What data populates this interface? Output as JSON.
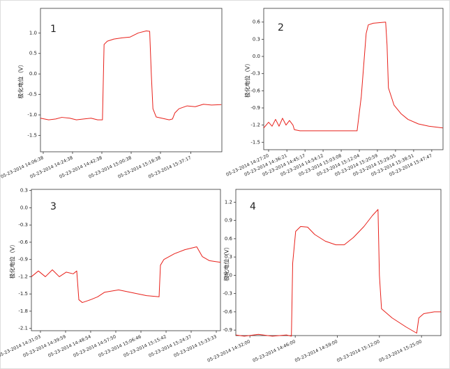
{
  "chart_data": [
    {
      "type": "line",
      "label": "1",
      "ylabel": "极化电位（V）",
      "x": [
        "2014-05-23T14:04:56",
        "2014-05-23T14:10:00",
        "2014-05-23T14:14:20",
        "2014-05-23T14:18:00",
        "2014-05-23T14:22:56",
        "2014-05-23T14:27:00",
        "2014-05-23T14:31:32",
        "2014-05-23T14:36:00",
        "2014-05-23T14:40:02",
        "2014-05-23T14:43:00",
        "2014-05-23T14:44:00",
        "2014-05-23T14:46:00",
        "2014-05-23T14:50:00",
        "2014-05-23T14:55:00",
        "2014-05-23T15:00:00",
        "2014-05-23T15:05:00",
        "2014-05-23T15:10:00",
        "2014-05-23T15:12:00",
        "2014-05-23T15:13:00",
        "2014-05-23T15:14:00",
        "2014-05-23T15:16:00",
        "2014-05-23T15:24:00",
        "2014-05-23T15:26:00",
        "2014-05-23T15:27:30",
        "2014-05-23T15:30:00",
        "2014-05-23T15:35:00",
        "2014-05-23T15:40:00",
        "2014-05-23T15:45:00",
        "2014-05-23T15:50:00",
        "2014-05-23T15:56:00"
      ],
      "series": [
        {
          "color": "#e8201a",
          "values": [
            -1.08,
            -1.12,
            -1.1,
            -1.06,
            -1.08,
            -1.12,
            -1.1,
            -1.08,
            -1.12,
            -1.12,
            0.72,
            0.8,
            0.85,
            0.88,
            0.9,
            1.0,
            1.05,
            1.04,
            0.0,
            -0.85,
            -1.05,
            -1.12,
            -1.1,
            -0.95,
            -0.85,
            -0.78,
            -0.8,
            -0.74,
            -0.76,
            -0.75
          ]
        }
      ],
      "xlim": [
        "2014-05-23T14:04:56",
        "2014-05-23T15:56:20"
      ],
      "ylim": [
        -1.9,
        1.6
      ],
      "xticks": [
        {
          "value": "2014-05-23T14:06:38",
          "label": "05-23-2014 14:06:38"
        },
        {
          "value": "2014-05-23T14:24:38",
          "label": "05-23-2014 14:24:38"
        },
        {
          "value": "2014-05-23T14:42:38",
          "label": "05-23-2014 14:42:38"
        },
        {
          "value": "2014-05-23T15:00:38",
          "label": "05-23-2014 15:00:38"
        },
        {
          "value": "2014-05-23T15:18:38",
          "label": "05-23-2014 15:18:38"
        },
        {
          "value": "2014-05-23T15:37:17",
          "label": "05-23-2014 15:37:17"
        }
      ],
      "yticks": [
        {
          "value": 1,
          "label": "1.0"
        },
        0.5,
        {
          "value": 0,
          "label": "0.0"
        },
        -0.5,
        {
          "value": -1,
          "label": "-1.0"
        },
        -1.5
      ]
    },
    {
      "type": "line",
      "label": "2",
      "ylabel": "极化电位（V）",
      "x": [
        "2014-05-23T14:24:56",
        "2014-05-23T14:27:20",
        "2014-05-23T14:29:03",
        "2014-05-23T14:30:46",
        "2014-05-23T14:32:29",
        "2014-05-23T14:34:12",
        "2014-05-23T14:35:55",
        "2014-05-23T14:37:38",
        "2014-05-23T14:39:21",
        "2014-05-23T14:40:02",
        "2014-05-23T14:42:46",
        "2014-05-23T15:10:58",
        "2014-05-23T15:13:02",
        "2014-05-23T15:15:26",
        "2014-05-23T15:16:28",
        "2014-05-23T15:18:52",
        "2014-05-23T15:25:03",
        "2014-05-23T15:25:44",
        "2014-05-23T15:26:25",
        "2014-05-23T15:29:10",
        "2014-05-23T15:32:36",
        "2014-05-23T15:36:02",
        "2014-05-23T15:41:11",
        "2014-05-23T15:46:20",
        "2014-05-23T15:53:13"
      ],
      "series": [
        {
          "color": "#e8201a",
          "values": [
            -1.25,
            -1.15,
            -1.22,
            -1.1,
            -1.22,
            -1.08,
            -1.2,
            -1.12,
            -1.2,
            -1.28,
            -1.3,
            -1.3,
            -0.7,
            0.4,
            0.55,
            0.58,
            0.6,
            0.2,
            -0.55,
            -0.85,
            -1.0,
            -1.1,
            -1.18,
            -1.22,
            -1.25
          ]
        }
      ],
      "xlim": [
        "2014-05-23T14:24:56",
        "2014-05-23T15:53:20"
      ],
      "ylim": [
        -1.63,
        0.84
      ],
      "xticks": [
        {
          "value": "2014-05-23T14:27:20",
          "label": "05-23-2014 14:27:20"
        },
        {
          "value": "2014-05-23T14:36:21",
          "label": "05-23-2014 14:36:21"
        },
        {
          "value": "2014-05-23T14:45:17",
          "label": "05-23-2014 14:45:17"
        },
        {
          "value": "2014-05-23T14:54:12",
          "label": "05-23-2014 14:54:12"
        },
        {
          "value": "2014-05-23T15:03:08",
          "label": "05-23-2014 15:03:08"
        },
        {
          "value": "2014-05-23T15:12:04",
          "label": "05-23-2014 15:12:04"
        },
        {
          "value": "2014-05-23T15:20:59",
          "label": "05-23-2014 15:20:59"
        },
        {
          "value": "2014-05-23T15:29:55",
          "label": "05-23-2014 15:29:55"
        },
        {
          "value": "2014-05-23T15:38:51",
          "label": "05-23-2014 15:38:51"
        },
        {
          "value": "2014-05-23T15:47:47",
          "label": "05-23-2014 15:47:47"
        }
      ],
      "yticks": [
        0.6,
        0.3,
        {
          "value": 0,
          "label": "0.0"
        },
        -0.3,
        -0.6,
        -0.9,
        -1.2,
        -1.5
      ]
    },
    {
      "type": "line",
      "label": "3",
      "ylabel": "极化电位（V）",
      "x": [
        "2014-05-23T14:27:50",
        "2014-05-23T14:30:19",
        "2014-05-23T14:32:48",
        "2014-05-23T14:35:17",
        "2014-05-23T14:37:45",
        "2014-05-23T14:40:14",
        "2014-05-23T14:42:43",
        "2014-05-23T14:43:57",
        "2014-05-23T14:44:42",
        "2014-05-23T14:45:56",
        "2014-05-23T14:48:54",
        "2014-05-23T14:51:23",
        "2014-05-23T14:53:52",
        "2014-05-23T14:58:50",
        "2014-05-23T15:03:47",
        "2014-05-23T15:08:45",
        "2014-05-23T15:13:13",
        "2014-05-23T15:13:42",
        "2014-05-23T15:14:56",
        "2014-05-23T15:18:39",
        "2014-05-23T15:22:22",
        "2014-05-23T15:26:36",
        "2014-05-23T15:28:35",
        "2014-05-23T15:31:03",
        "2014-05-23T15:35:02"
      ],
      "series": [
        {
          "color": "#e8201a",
          "values": [
            -1.2,
            -1.1,
            -1.2,
            -1.08,
            -1.2,
            -1.12,
            -1.15,
            -1.1,
            -1.6,
            -1.65,
            -1.6,
            -1.55,
            -1.47,
            -1.43,
            -1.48,
            -1.53,
            -1.55,
            -1.0,
            -0.9,
            -0.8,
            -0.73,
            -0.68,
            -0.85,
            -0.92,
            -0.95
          ]
        }
      ],
      "xlim": [
        "2014-05-23T14:27:50",
        "2014-05-23T15:35:02"
      ],
      "ylim": [
        -2.14,
        0.32
      ],
      "xticks": [
        {
          "value": "2014-05-23T14:31:03",
          "label": "05-23-2014 14:31:03"
        },
        {
          "value": "2014-05-23T14:39:59",
          "label": "05-23-2014 14:39:59"
        },
        {
          "value": "2014-05-23T14:48:54",
          "label": "05-23-2014 14:48:54"
        },
        {
          "value": "2014-05-23T14:57:50",
          "label": "05-23-2014 14:57:50"
        },
        {
          "value": "2014-05-23T15:06:46",
          "label": "05-23-2014 15:06:46"
        },
        {
          "value": "2014-05-23T15:15:42",
          "label": "05-23-2014 15:15:42"
        },
        {
          "value": "2014-05-23T15:24:37",
          "label": "05-23-2014 15:24:37"
        },
        {
          "value": "2014-05-23T15:33:33",
          "label": "05-23-2014 15:33:33"
        }
      ],
      "yticks": [
        0.3,
        {
          "value": 0,
          "label": "0.0"
        },
        -0.3,
        -0.6,
        -0.9,
        -1.2,
        -1.5,
        -1.8,
        -2.1
      ]
    },
    {
      "type": "line",
      "label": "4",
      "ylabel": "极化电位（V）",
      "x": [
        "2014-05-23T14:27:39",
        "2014-05-23T14:30:16",
        "2014-05-23T14:34:37",
        "2014-05-23T14:38:57",
        "2014-05-23T14:43:18",
        "2014-05-23T14:44:49",
        "2014-05-23T14:45:13",
        "2014-05-23T14:46:08",
        "2014-05-23T14:47:39",
        "2014-05-23T14:49:50",
        "2014-05-23T14:52:00",
        "2014-05-23T14:55:16",
        "2014-05-23T14:58:32",
        "2014-05-23T15:01:08",
        "2014-05-23T15:03:58",
        "2014-05-23T15:07:13",
        "2014-05-23T15:09:50",
        "2014-05-23T15:11:34",
        "2014-05-23T15:12:00",
        "2014-05-23T15:12:39",
        "2014-05-23T15:15:55",
        "2014-05-23T15:20:16",
        "2014-05-23T15:23:31",
        "2014-05-23T15:24:10",
        "2014-05-23T15:25:42",
        "2014-05-23T15:28:57",
        "2014-05-23T15:31:00"
      ],
      "series": [
        {
          "color": "#e8201a",
          "values": [
            -0.98,
            -1.0,
            -0.97,
            -1.0,
            -0.98,
            -1.0,
            0.2,
            0.72,
            0.8,
            0.79,
            0.67,
            0.56,
            0.5,
            0.5,
            0.62,
            0.8,
            0.98,
            1.08,
            0.0,
            -0.55,
            -0.7,
            -0.85,
            -0.95,
            -0.7,
            -0.63,
            -0.6,
            -0.6
          ]
        }
      ],
      "xlim": [
        "2014-05-23T14:27:39",
        "2014-05-23T15:31:00"
      ],
      "ylim": [
        -0.99,
        1.41
      ],
      "xticks": [
        {
          "value": "2014-05-23T14:32:00",
          "label": "05-23-2014 14:32:00"
        },
        {
          "value": "2014-05-23T14:46:00",
          "label": "05-23-2014 14:46:00"
        },
        {
          "value": "2014-05-23T14:59:00",
          "label": "05-23-2014 14:59:00"
        },
        {
          "value": "2014-05-23T15:12:00",
          "label": "05-23-2014 15:12:00"
        },
        {
          "value": "2014-05-23T15:25:00",
          "label": "05-23-2014 15:25:00"
        }
      ],
      "yticks": [
        1.2,
        0.9,
        0.6,
        0.3,
        {
          "value": 0,
          "label": "0.0"
        },
        -0.3,
        -0.6,
        -0.9
      ]
    }
  ]
}
